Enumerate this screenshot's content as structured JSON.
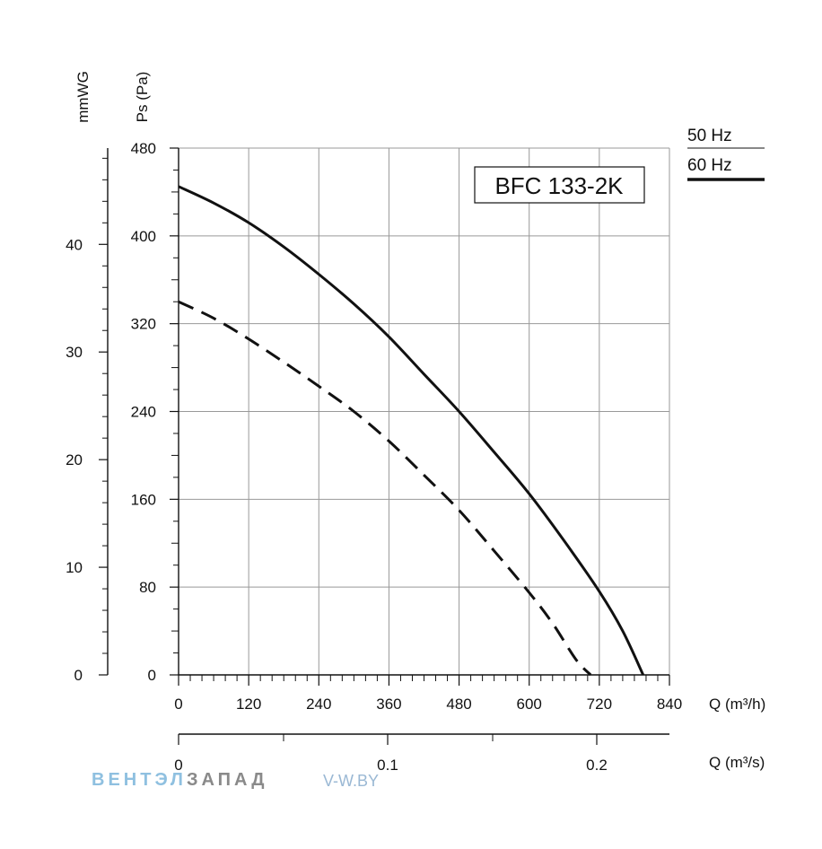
{
  "chart_data": {
    "type": "line",
    "title": "BFC 133-2K",
    "x_axis": {
      "label": "Q (m³/h)",
      "range": [
        0,
        840
      ],
      "ticks": [
        "0",
        "120",
        "240",
        "360",
        "480",
        "600",
        "720",
        "840"
      ]
    },
    "x2_axis": {
      "label": "Q (m³/s)",
      "ticks": [
        "0",
        "0.1",
        "0.2"
      ]
    },
    "y_axis": {
      "label": "Ps (Pa)",
      "range": [
        0,
        480
      ],
      "ticks": [
        "0",
        "80",
        "160",
        "240",
        "320",
        "400",
        "480"
      ]
    },
    "y2_axis": {
      "label": "mmWG",
      "ticks": [
        "0",
        "10",
        "20",
        "30",
        "40"
      ]
    },
    "grid": true,
    "legend_position": "top-right",
    "legend": [
      {
        "label": "50 Hz",
        "style": "thin"
      },
      {
        "label": "60 Hz",
        "style": "thick"
      }
    ],
    "series": [
      {
        "style": "solid",
        "x": [
          0,
          60,
          120,
          180,
          240,
          300,
          360,
          420,
          480,
          540,
          600,
          660,
          720,
          760,
          795
        ],
        "y": [
          445,
          430,
          412,
          390,
          365,
          338,
          308,
          274,
          240,
          203,
          165,
          122,
          76,
          40,
          0
        ]
      },
      {
        "style": "dashed",
        "x": [
          0,
          60,
          120,
          180,
          240,
          300,
          360,
          420,
          480,
          540,
          600,
          640,
          680,
          705
        ],
        "y": [
          340,
          325,
          306,
          285,
          263,
          240,
          213,
          182,
          150,
          113,
          75,
          47,
          14,
          0
        ]
      }
    ]
  },
  "watermark": {
    "brand_a": "ВЕНТЭЛ",
    "brand_b": "ЗАПАД",
    "site": "V-W.BY"
  }
}
